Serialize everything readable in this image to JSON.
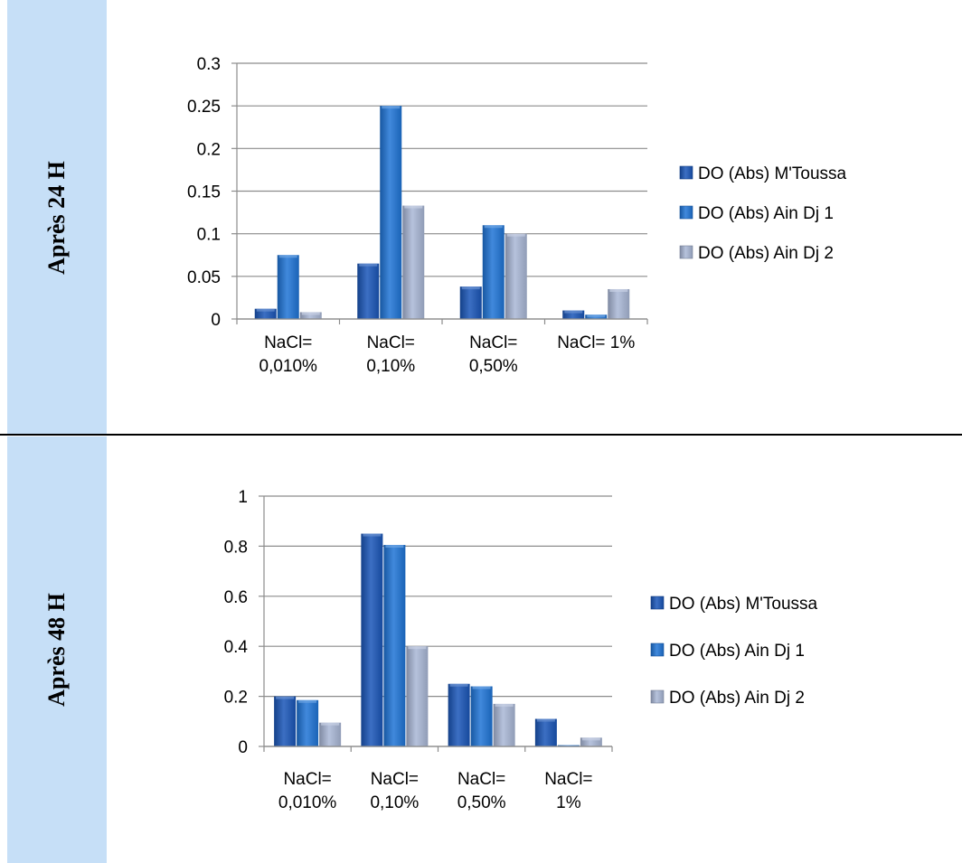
{
  "rows": [
    {
      "label": "Après 24 H"
    },
    {
      "label": "Après 48 H"
    }
  ],
  "colors": {
    "row_label_bg": "#c6dff7",
    "series": [
      "#1a56b8",
      "#1f74d6",
      "#a9b7d6"
    ]
  },
  "chart_data": [
    {
      "type": "bar",
      "title": "",
      "xlabel": "",
      "ylabel": "",
      "ylim": [
        0,
        0.3
      ],
      "yticks": [
        "0",
        "0.05",
        "0.1",
        "0.15",
        "0.2",
        "0.25",
        "0.3"
      ],
      "categories": [
        [
          "NaCl=",
          "0,010%"
        ],
        [
          "NaCl=",
          "0,10%"
        ],
        [
          "NaCl=",
          "0,50%"
        ],
        [
          "NaCl= 1%"
        ]
      ],
      "series": [
        {
          "name": "DO (Abs) M'Toussa",
          "values": [
            0.012,
            0.065,
            0.038,
            0.01
          ]
        },
        {
          "name": "DO (Abs) Ain Dj 1",
          "values": [
            0.075,
            0.25,
            0.11,
            0.005
          ]
        },
        {
          "name": "DO (Abs) Ain Dj 2",
          "values": [
            0.008,
            0.133,
            0.1,
            0.035
          ]
        }
      ],
      "grid": true,
      "legend": "right"
    },
    {
      "type": "bar",
      "title": "",
      "xlabel": "",
      "ylabel": "",
      "ylim": [
        0,
        1
      ],
      "yticks": [
        "0",
        "0.2",
        "0.4",
        "0.6",
        "0.8",
        "1"
      ],
      "categories": [
        [
          "NaCl=",
          "0,010%"
        ],
        [
          "NaCl=",
          "0,10%"
        ],
        [
          "NaCl=",
          "0,50%"
        ],
        [
          "NaCl=",
          "1%"
        ]
      ],
      "series": [
        {
          "name": "DO (Abs) M'Toussa",
          "values": [
            0.2,
            0.85,
            0.25,
            0.11
          ]
        },
        {
          "name": "DO (Abs) Ain Dj 1",
          "values": [
            0.185,
            0.805,
            0.24,
            0.005
          ]
        },
        {
          "name": "DO (Abs) Ain Dj 2",
          "values": [
            0.095,
            0.4,
            0.17,
            0.035
          ]
        }
      ],
      "grid": true,
      "legend": "right"
    }
  ]
}
